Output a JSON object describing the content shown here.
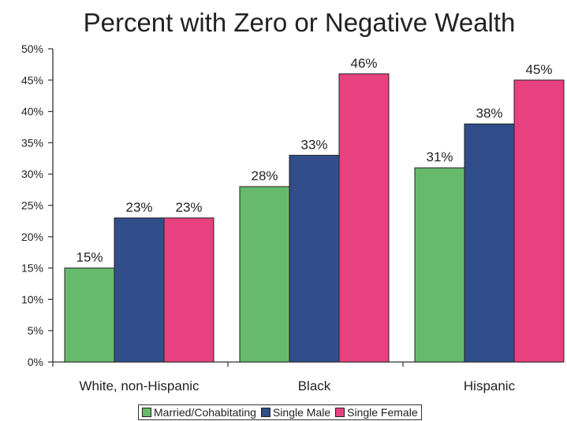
{
  "chart_data": {
    "type": "bar",
    "title": "Percent with Zero or Negative Wealth",
    "categories": [
      "White, non-Hispanic",
      "Black",
      "Hispanic"
    ],
    "series": [
      {
        "name": "Married/Cohabitating",
        "color": "#67b96c",
        "values": [
          15,
          28,
          31
        ],
        "labels": [
          "15%",
          "28%",
          "31%"
        ]
      },
      {
        "name": "Single Male",
        "color": "#314d8a",
        "values": [
          23,
          33,
          38
        ],
        "labels": [
          "23%",
          "33%",
          "38%"
        ]
      },
      {
        "name": "Single Female",
        "color": "#e8417f",
        "values": [
          23,
          46,
          45
        ],
        "labels": [
          "23%",
          "46%",
          "45%"
        ]
      }
    ],
    "ylim": [
      0,
      50
    ],
    "yticks": [
      0,
      5,
      10,
      15,
      20,
      25,
      30,
      35,
      40,
      45,
      50
    ],
    "ytick_labels": [
      "0%",
      "5%",
      "10%",
      "15%",
      "20%",
      "25%",
      "30%",
      "35%",
      "40%",
      "45%",
      "50%"
    ],
    "xlabel": "",
    "ylabel": "",
    "grid": false,
    "legend_position": "bottom"
  }
}
